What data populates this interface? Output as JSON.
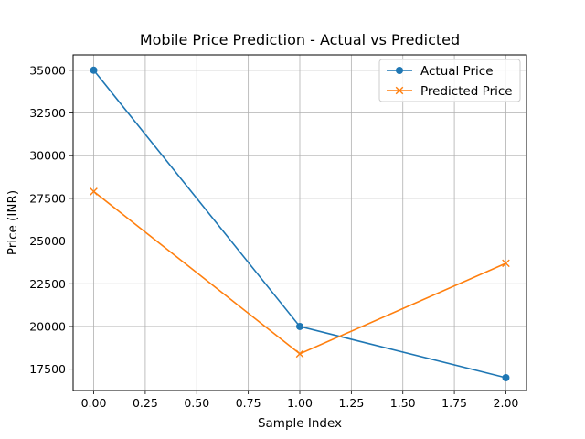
{
  "chart_data": {
    "type": "line",
    "title": "Mobile Price Prediction - Actual vs Predicted",
    "xlabel": "Sample Index",
    "ylabel": "Price (INR)",
    "x": [
      0,
      1,
      2
    ],
    "xlim": [
      -0.1,
      2.1
    ],
    "ylim": [
      16250,
      35900
    ],
    "xticks": [
      0.0,
      0.25,
      0.5,
      0.75,
      1.0,
      1.25,
      1.5,
      1.75,
      2.0
    ],
    "xtick_labels": [
      "0.00",
      "0.25",
      "0.50",
      "0.75",
      "1.00",
      "1.25",
      "1.50",
      "1.75",
      "2.00"
    ],
    "yticks": [
      17500,
      20000,
      22500,
      25000,
      27500,
      30000,
      32500,
      35000
    ],
    "ytick_labels": [
      "17500",
      "20000",
      "22500",
      "25000",
      "27500",
      "30000",
      "32500",
      "35000"
    ],
    "grid": true,
    "legend_position": "top-right",
    "series": [
      {
        "name": "Actual Price",
        "values": [
          35000,
          20000,
          17000
        ],
        "color": "#1f77b4",
        "marker": "circle"
      },
      {
        "name": "Predicted Price",
        "values": [
          27900,
          18400,
          23700
        ],
        "color": "#ff7f0e",
        "marker": "x"
      }
    ]
  }
}
